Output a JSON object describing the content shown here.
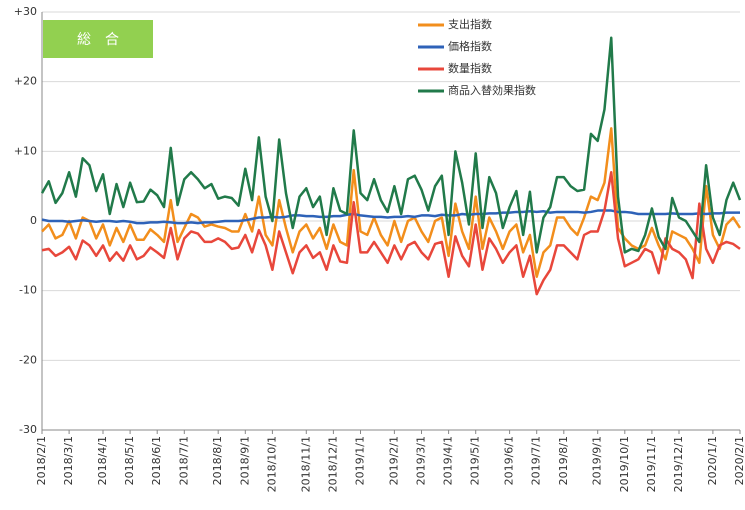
{
  "chart_data": {
    "type": "line",
    "annotation": "総　合",
    "legend": "top-right",
    "grid": true,
    "ylim": [
      -30,
      30
    ],
    "yticks": [
      -30,
      -20,
      -10,
      0,
      {
        "value": 10,
        "label": "+10"
      },
      {
        "value": 20,
        "label": "+20"
      },
      {
        "value": 30,
        "label": "+30"
      }
    ],
    "categories": [
      "2018/2/1",
      null,
      null,
      null,
      "2018/3/1",
      null,
      null,
      null,
      null,
      "2018/4/1",
      null,
      null,
      null,
      "2018/5/1",
      null,
      null,
      null,
      "2018/6/1",
      null,
      null,
      null,
      "2018/7/1",
      null,
      null,
      null,
      null,
      "2018/8/1",
      null,
      null,
      null,
      "2018/9/1",
      null,
      null,
      null,
      "2018/10/1",
      null,
      null,
      null,
      null,
      "2018/11/1",
      null,
      null,
      null,
      "2018/12/1",
      null,
      null,
      null,
      "2019/1/1",
      null,
      null,
      null,
      null,
      "2019/2/1",
      null,
      null,
      null,
      "2019/3/1",
      null,
      null,
      null,
      "2019/4/1",
      null,
      null,
      null,
      "2019/5/1",
      null,
      null,
      null,
      null,
      "2019/6/1",
      null,
      null,
      null,
      "2019/7/1",
      null,
      null,
      null,
      "2019/8/1",
      null,
      null,
      null,
      null,
      "2019/9/1",
      null,
      null,
      null,
      "2019/10/1",
      null,
      null,
      null,
      "2019/11/1",
      null,
      null,
      null,
      "2019/12/1",
      null,
      null,
      null,
      null,
      "2020/1/1",
      null,
      null,
      null,
      "2020/2/1"
    ],
    "series": [
      {
        "name": "支出指数",
        "color": "#f28e1c",
        "values": [
          -1.5,
          -0.5,
          -2.5,
          -2,
          0,
          -2.5,
          0.5,
          0,
          -2.5,
          -0.5,
          -3.5,
          -1,
          -3,
          -0.5,
          -2.7,
          -2.7,
          -1.2,
          -2,
          -3,
          3,
          -3,
          -1,
          1,
          0.5,
          -0.8,
          -0.5,
          -0.8,
          -1,
          -1.5,
          -1.5,
          1,
          -1.5,
          3.5,
          -2,
          -3.5,
          3,
          -1,
          -4.5,
          -1.5,
          -0.5,
          -2.5,
          -1,
          -4,
          -0.5,
          -3,
          -3.5,
          7.3,
          -1.5,
          -2,
          0.5,
          -2,
          -3.5,
          0,
          -3,
          0,
          0.5,
          -1.5,
          -3,
          0,
          0.5,
          -5,
          2.5,
          -1.5,
          -4,
          3.5,
          -4,
          0.5,
          -1.5,
          -4,
          -1.5,
          -0.5,
          -4.5,
          -2,
          -8,
          -4.5,
          -3.5,
          0.5,
          0.5,
          -1,
          -2,
          0.5,
          3.5,
          3,
          5.5,
          13.3,
          -1,
          -2.5,
          -3.5,
          -4,
          -3.5,
          -1,
          -3.5,
          -5.5,
          -1.5,
          -2,
          -2.5,
          -4,
          -6,
          5,
          -2,
          -4,
          -0.5,
          0.5,
          -1
        ]
      },
      {
        "name": "価格指数",
        "color": "#2e62b8",
        "values": [
          0.2,
          0,
          0,
          0,
          -0.1,
          0,
          0.1,
          0,
          -0.1,
          0,
          0,
          -0.1,
          0,
          -0.1,
          -0.3,
          -0.3,
          -0.2,
          -0.2,
          -0.1,
          -0.2,
          -0.3,
          -0.3,
          -0.2,
          -0.3,
          -0.2,
          -0.2,
          -0.1,
          0,
          0,
          0,
          0.1,
          0.3,
          0.5,
          0.5,
          0.6,
          0.5,
          0.6,
          0.8,
          0.8,
          0.7,
          0.7,
          0.6,
          0.6,
          0.7,
          0.7,
          0.9,
          1,
          0.8,
          0.7,
          0.6,
          0.6,
          0.5,
          0.6,
          0.6,
          0.7,
          0.6,
          0.8,
          0.8,
          0.7,
          0.9,
          0.8,
          0.8,
          1,
          0.9,
          1,
          1,
          1.1,
          1.1,
          1.2,
          1.2,
          1.3,
          1.3,
          1.4,
          1.3,
          1.4,
          1.2,
          1.3,
          1.3,
          1.3,
          1.3,
          1.2,
          1.3,
          1.5,
          1.5,
          1.5,
          1.3,
          1.3,
          1.2,
          1,
          1,
          1,
          1,
          1,
          1.1,
          1,
          1,
          1,
          1.1,
          1,
          1.1,
          1.1,
          1.2,
          1.2,
          1.2
        ]
      },
      {
        "name": "数量指数",
        "color": "#e8473b",
        "values": [
          -4.2,
          -4,
          -5,
          -4.5,
          -3.7,
          -5.5,
          -2.8,
          -3.5,
          -5,
          -3.5,
          -5.7,
          -4.5,
          -5.7,
          -3.5,
          -5.5,
          -5,
          -3.8,
          -4.5,
          -5.3,
          -1,
          -5.5,
          -2.5,
          -1.5,
          -1.8,
          -3,
          -3,
          -2.5,
          -3,
          -4,
          -3.8,
          -2,
          -4.5,
          -1.3,
          -3.5,
          -7,
          -1.5,
          -4.5,
          -7.5,
          -4.5,
          -3.5,
          -5.3,
          -4.5,
          -7,
          -3.5,
          -5.8,
          -6,
          2.7,
          -4.5,
          -4.5,
          -3,
          -4.5,
          -6,
          -3.5,
          -5.5,
          -3.5,
          -3,
          -4.5,
          -5.5,
          -3.3,
          -3,
          -8,
          -2.2,
          -5,
          -6.5,
          -0.5,
          -7,
          -2.5,
          -4,
          -6,
          -4.5,
          -3.5,
          -8,
          -5,
          -10.5,
          -8.5,
          -7,
          -3.5,
          -3.5,
          -4.5,
          -5.5,
          -2,
          -1.5,
          -1.5,
          1.5,
          7,
          -2.5,
          -6.5,
          -6,
          -5.5,
          -4,
          -4.5,
          -7.5,
          -2.5,
          -4,
          -4.5,
          -5.5,
          -8.2,
          2.5,
          -4,
          -6,
          -3.5,
          -3,
          -3.3,
          -4
        ]
      },
      {
        "name": "商品入替効果指数",
        "color": "#217a4a",
        "values": [
          4,
          5.7,
          2.6,
          4,
          7,
          3.5,
          9,
          8,
          4.3,
          6.7,
          1,
          5.3,
          2,
          5.5,
          2.7,
          2.8,
          4.5,
          3.7,
          2,
          10.5,
          2.3,
          6,
          7,
          6,
          4.7,
          5.3,
          3.2,
          3.5,
          3.3,
          2.2,
          7.5,
          3,
          12,
          3.5,
          0,
          11.7,
          4,
          -1,
          3.5,
          4.7,
          2,
          3.5,
          -2,
          4.7,
          1.5,
          1,
          13,
          4,
          3,
          6,
          3,
          1.3,
          5,
          1,
          6,
          6.5,
          4.5,
          1.5,
          5,
          6.5,
          -2,
          10,
          5.5,
          -0.5,
          9.7,
          -1,
          6.3,
          4,
          -1,
          2,
          4.3,
          -2,
          4.2,
          -4.5,
          0.5,
          2,
          6.3,
          6.3,
          5,
          4.3,
          4.5,
          12.5,
          11.5,
          16,
          26.3,
          3.5,
          -4.5,
          -4,
          -4.3,
          -2,
          1.8,
          -2.3,
          -4,
          3.3,
          0.5,
          0,
          -1.5,
          -3,
          8,
          0.5,
          -2,
          3,
          5.5,
          3
        ]
      }
    ]
  }
}
